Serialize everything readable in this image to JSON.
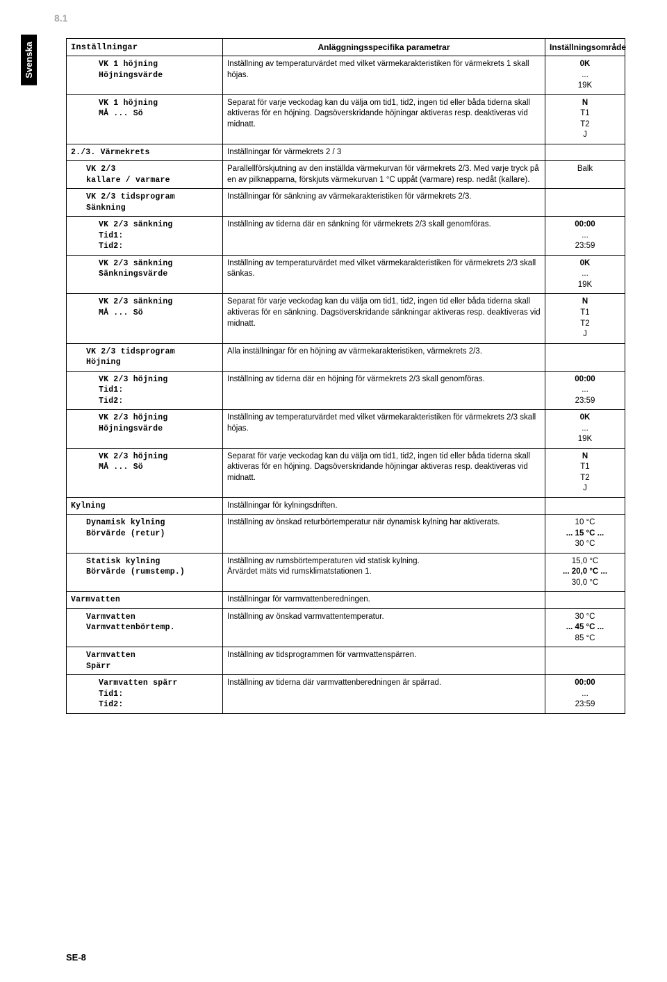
{
  "section_number": "8.1",
  "side_tab": "Svenska",
  "footer": "SE-8",
  "headers": {
    "col1": "Inställningar",
    "col2": "Anläggningsspecifika parametrar",
    "col3": "Inställningsområde"
  },
  "rows": [
    {
      "indent": 2,
      "set": [
        "VK 1 höjning",
        "Höjningsvärde"
      ],
      "desc": "Inställning av temperaturvärdet med vilket värmekarakteristiken för värmekrets 1 skall höjas.",
      "range": [
        "0K",
        "...",
        "19K"
      ]
    },
    {
      "indent": 2,
      "set": [
        "VK 1 höjning",
        "MÅ  ...  Sö"
      ],
      "desc": "Separat för varje veckodag kan du välja om tid1, tid2, ingen tid eller båda tiderna skall aktiveras för en höjning. Dagsöverskridande höjningar aktiveras resp. deaktiveras vid midnatt.",
      "range": [
        "N",
        "T1",
        "T2",
        "J"
      ]
    },
    {
      "indent": 0,
      "set": [
        "2./3. Värmekrets"
      ],
      "desc": "Inställningar för värmekrets 2 / 3",
      "range": []
    },
    {
      "indent": 1,
      "set": [
        "VK 2/3",
        "kallare / varmare"
      ],
      "desc": "Parallellförskjutning av den inställda värmekurvan för värmekrets 2/3. Med varje tryck på en av pilknapparna, förskjuts värmekurvan 1 °C uppåt (varmare) resp. nedåt (kallare).",
      "range": [
        "Balk"
      ]
    },
    {
      "indent": 1,
      "set": [
        "VK 2/3 tidsprogram",
        "Sänkning"
      ],
      "desc": "Inställningar för sänkning av värmekarakteristiken för värmekrets 2/3.",
      "range": []
    },
    {
      "indent": 2,
      "set": [
        "VK 2/3 sänkning",
        "Tid1:",
        "Tid2:"
      ],
      "desc": "Inställning av tiderna där en sänkning för värmekrets 2/3 skall genomföras.",
      "range": [
        "00:00",
        "...",
        "23:59"
      ]
    },
    {
      "indent": 2,
      "set": [
        "VK 2/3 sänkning",
        "Sänkningsvärde"
      ],
      "desc": "Inställning av temperaturvärdet med vilket värmekarakteristiken för värmekrets 2/3 skall sänkas.",
      "range": [
        "0K",
        "...",
        "19K"
      ]
    },
    {
      "indent": 2,
      "set": [
        "VK 2/3 sänkning",
        "MÅ  ...  Sö"
      ],
      "desc": "Separat för varje veckodag kan du välja om tid1, tid2, ingen tid eller båda tiderna skall aktiveras för en sänkning. Dagsöverskridande sänkningar aktiveras resp. deaktiveras vid midnatt.",
      "range": [
        "N",
        "T1",
        "T2",
        "J"
      ]
    },
    {
      "indent": 1,
      "set": [
        "VK 2/3 tidsprogram",
        "Höjning"
      ],
      "desc": "Alla inställningar för en höjning av värmekarakteristiken, värmekrets 2/3.",
      "range": []
    },
    {
      "indent": 2,
      "set": [
        "VK 2/3 höjning",
        "Tid1:",
        "Tid2:"
      ],
      "desc": "Inställning av tiderna där en höjning för värmekrets 2/3 skall genomföras.",
      "range": [
        "00:00",
        "...",
        "23:59"
      ]
    },
    {
      "indent": 2,
      "set": [
        "VK 2/3 höjning",
        "Höjningsvärde"
      ],
      "desc": "Inställning av temperaturvärdet med vilket värmekarakteristiken för värmekrets 2/3 skall höjas.",
      "range": [
        "0K",
        "...",
        "19K"
      ]
    },
    {
      "indent": 2,
      "set": [
        "VK 2/3 höjning",
        "MÅ  ...  Sö"
      ],
      "desc": "Separat för varje veckodag kan du välja om tid1, tid2, ingen tid eller båda tiderna skall aktiveras för en höjning. Dagsöverskridande höjningar aktiveras resp. deaktiveras vid midnatt.",
      "range": [
        "N",
        "T1",
        "T2",
        "J"
      ]
    },
    {
      "indent": 0,
      "set": [
        "Kylning"
      ],
      "desc": "Inställningar för kylningsdriften.",
      "range": []
    },
    {
      "indent": 1,
      "set": [
        "Dynamisk kylning",
        "Börvärde (retur)"
      ],
      "desc": "Inställning av önskad returbörtemperatur när dynamisk kylning har aktiverats.",
      "range": [
        "10 °C",
        "... 15 °C ...",
        "30 °C"
      ],
      "boldIdx": 1
    },
    {
      "indent": 1,
      "set": [
        "Statisk kylning",
        "Börvärde (rumstemp.)"
      ],
      "desc": "Inställning av rumsbörtemperaturen vid statisk kylning.\nÄrvärdet mäts vid rumsklimatstationen 1.",
      "range": [
        "15,0 °C",
        "... 20,0 °C ...",
        "30,0 °C"
      ],
      "boldIdx": 1
    },
    {
      "indent": 0,
      "set": [
        "Varmvatten"
      ],
      "desc": "Inställningar för varmvattenberedningen.",
      "range": []
    },
    {
      "indent": 1,
      "set": [
        "Varmvatten",
        "Varmvattenbörtemp."
      ],
      "desc": "Inställning av önskad varmvattentemperatur.",
      "range": [
        "30 °C",
        "... 45 °C ...",
        "85 °C"
      ],
      "boldIdx": 1
    },
    {
      "indent": 1,
      "set": [
        "Varmvatten",
        "Spärr"
      ],
      "desc": "Inställning av tidsprogrammen för varmvattenspärren.",
      "range": []
    },
    {
      "indent": 2,
      "set": [
        "Varmvatten spärr",
        "Tid1:",
        "Tid2:"
      ],
      "desc": "Inställning av tiderna där varmvattenberedningen är spärrad.",
      "range": [
        "00:00",
        "...",
        "23:59"
      ]
    }
  ]
}
